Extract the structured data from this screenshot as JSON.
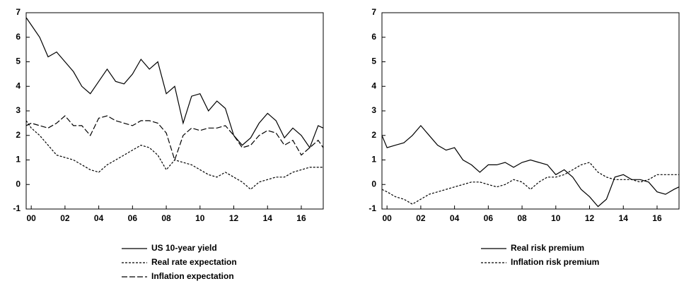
{
  "chart_data": [
    {
      "type": "line",
      "dash_styles": true,
      "x": [
        1999.7,
        2000.0,
        2000.5,
        2001.0,
        2001.5,
        2002.0,
        2002.5,
        2003.0,
        2003.5,
        2004.0,
        2004.5,
        2005.0,
        2005.5,
        2006.0,
        2006.5,
        2007.0,
        2007.5,
        2008.0,
        2008.5,
        2009.0,
        2009.5,
        2010.0,
        2010.5,
        2011.0,
        2011.5,
        2012.0,
        2012.5,
        2013.0,
        2013.5,
        2014.0,
        2014.5,
        2015.0,
        2015.5,
        2016.0,
        2016.5,
        2017.0,
        2017.3
      ],
      "series": [
        {
          "name": "US 10-year yield",
          "color": "#000000",
          "dash": "solid",
          "values": [
            6.8,
            6.5,
            6.0,
            5.2,
            5.4,
            5.0,
            4.6,
            4.0,
            3.7,
            4.2,
            4.7,
            4.2,
            4.1,
            4.5,
            5.1,
            4.7,
            5.0,
            3.7,
            4.0,
            2.5,
            3.6,
            3.7,
            3.0,
            3.4,
            3.1,
            2.0,
            1.6,
            1.9,
            2.5,
            2.9,
            2.6,
            1.9,
            2.3,
            2.0,
            1.5,
            2.4,
            2.3
          ]
        },
        {
          "name": "Real rate expectation",
          "color": "#000000",
          "dash": "short",
          "values": [
            2.6,
            2.3,
            2.0,
            1.6,
            1.2,
            1.1,
            1.0,
            0.8,
            0.6,
            0.5,
            0.8,
            1.0,
            1.2,
            1.4,
            1.6,
            1.5,
            1.2,
            0.6,
            1.0,
            0.9,
            0.8,
            0.6,
            0.4,
            0.3,
            0.5,
            0.3,
            0.1,
            -0.2,
            0.1,
            0.2,
            0.3,
            0.3,
            0.5,
            0.6,
            0.7,
            0.7,
            0.7
          ]
        },
        {
          "name": "Inflation expectation",
          "color": "#000000",
          "dash": "long",
          "values": [
            2.4,
            2.5,
            2.4,
            2.3,
            2.5,
            2.8,
            2.4,
            2.4,
            2.0,
            2.7,
            2.8,
            2.6,
            2.5,
            2.4,
            2.6,
            2.6,
            2.5,
            2.1,
            1.0,
            2.0,
            2.3,
            2.2,
            2.3,
            2.3,
            2.4,
            2.0,
            1.5,
            1.6,
            2.0,
            2.2,
            2.1,
            1.6,
            1.8,
            1.2,
            1.5,
            1.8,
            1.5
          ]
        }
      ],
      "xlim": [
        1999.7,
        2017.3
      ],
      "ylim": [
        -1,
        7
      ],
      "yticks": [
        -1,
        0,
        1,
        2,
        3,
        4,
        5,
        6,
        7
      ],
      "xticks": [
        {
          "value": 2000,
          "label": "00"
        },
        {
          "value": 2002,
          "label": "02"
        },
        {
          "value": 2004,
          "label": "04"
        },
        {
          "value": 2006,
          "label": "06"
        },
        {
          "value": 2008,
          "label": "08"
        },
        {
          "value": 2010,
          "label": "10"
        },
        {
          "value": 2012,
          "label": "12"
        },
        {
          "value": 2014,
          "label": "14"
        },
        {
          "value": 2016,
          "label": "16"
        }
      ]
    },
    {
      "type": "line",
      "dash_styles": true,
      "x": [
        1999.7,
        2000.0,
        2000.5,
        2001.0,
        2001.5,
        2002.0,
        2002.5,
        2003.0,
        2003.5,
        2004.0,
        2004.5,
        2005.0,
        2005.5,
        2006.0,
        2006.5,
        2007.0,
        2007.5,
        2008.0,
        2008.5,
        2009.0,
        2009.5,
        2010.0,
        2010.5,
        2011.0,
        2011.5,
        2012.0,
        2012.5,
        2013.0,
        2013.5,
        2014.0,
        2014.5,
        2015.0,
        2015.5,
        2016.0,
        2016.5,
        2017.0,
        2017.3
      ],
      "series": [
        {
          "name": "Real risk premium",
          "color": "#000000",
          "dash": "solid",
          "values": [
            2.0,
            1.5,
            1.6,
            1.7,
            2.0,
            2.4,
            2.0,
            1.6,
            1.4,
            1.5,
            1.0,
            0.8,
            0.5,
            0.8,
            0.8,
            0.9,
            0.7,
            0.9,
            1.0,
            0.9,
            0.8,
            0.4,
            0.6,
            0.3,
            -0.2,
            -0.5,
            -0.9,
            -0.6,
            0.3,
            0.4,
            0.2,
            0.2,
            0.1,
            -0.3,
            -0.4,
            -0.2,
            -0.1
          ]
        },
        {
          "name": "Inflation risk premium",
          "color": "#000000",
          "dash": "short",
          "values": [
            -0.2,
            -0.3,
            -0.5,
            -0.6,
            -0.8,
            -0.6,
            -0.4,
            -0.3,
            -0.2,
            -0.1,
            0.0,
            0.1,
            0.1,
            0.0,
            -0.1,
            0.0,
            0.2,
            0.1,
            -0.2,
            0.1,
            0.3,
            0.3,
            0.4,
            0.6,
            0.8,
            0.9,
            0.5,
            0.3,
            0.2,
            0.2,
            0.2,
            0.1,
            0.2,
            0.4,
            0.4,
            0.4,
            0.4
          ]
        }
      ],
      "xlim": [
        1999.7,
        2017.3
      ],
      "ylim": [
        -1,
        7
      ],
      "yticks": [
        -1,
        0,
        1,
        2,
        3,
        4,
        5,
        6,
        7
      ],
      "xticks": [
        {
          "value": 2000,
          "label": "00"
        },
        {
          "value": 2002,
          "label": "02"
        },
        {
          "value": 2004,
          "label": "04"
        },
        {
          "value": 2006,
          "label": "06"
        },
        {
          "value": 2008,
          "label": "08"
        },
        {
          "value": 2010,
          "label": "10"
        },
        {
          "value": 2012,
          "label": "12"
        },
        {
          "value": 2014,
          "label": "14"
        },
        {
          "value": 2016,
          "label": "16"
        }
      ]
    }
  ]
}
